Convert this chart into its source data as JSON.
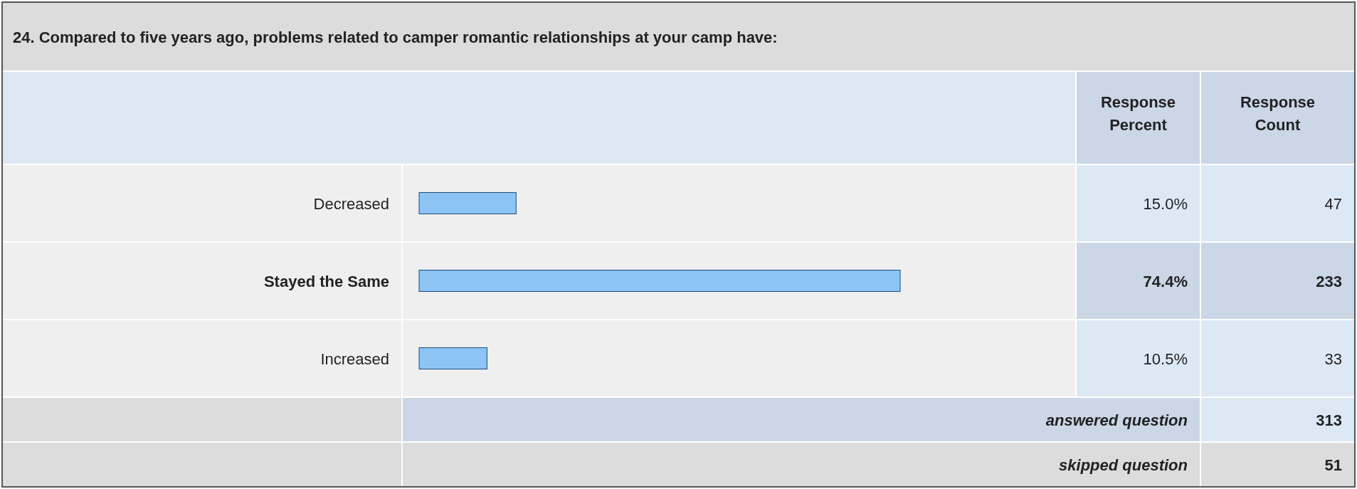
{
  "chart_data": {
    "type": "bar",
    "orientation": "horizontal",
    "title": "24. Compared to five years ago, problems related to camper romantic relationships at your camp have:",
    "categories": [
      "Decreased",
      "Stayed the Same",
      "Increased"
    ],
    "values": [
      15.0,
      74.4,
      10.5
    ],
    "value_labels": [
      "15.0%",
      "74.4%",
      "10.5%"
    ],
    "color": "#8cc4f6",
    "annotations": [
      "Response Percent",
      "Response Count",
      "47",
      "233",
      "33",
      "answered question",
      "313",
      "skipped question",
      "51"
    ]
  }
}
